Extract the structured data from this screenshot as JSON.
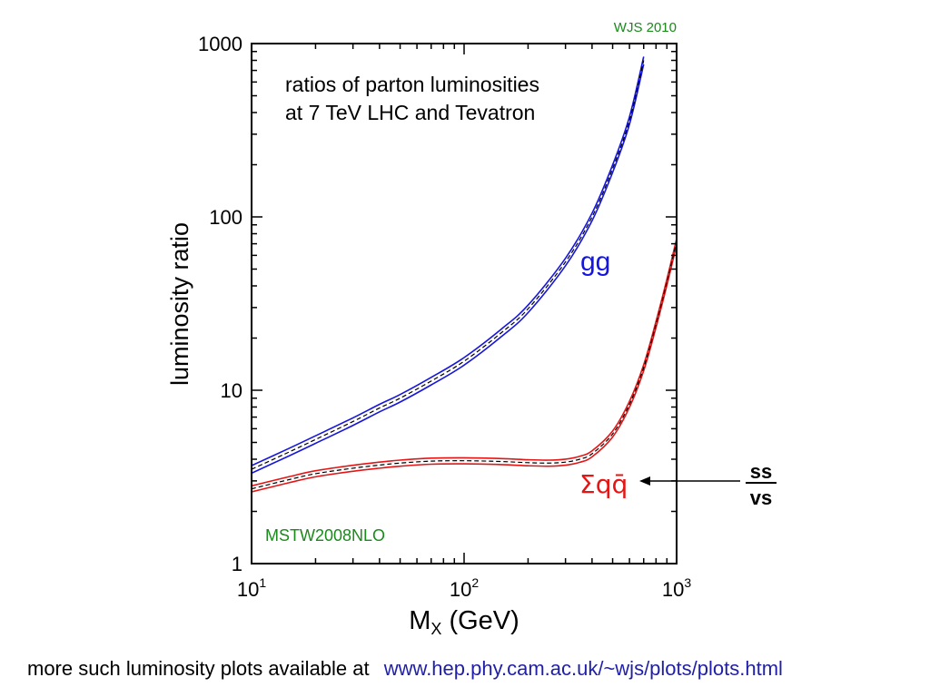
{
  "chart_data": {
    "type": "line",
    "title_lines": [
      "ratios of parton luminosities",
      "at 7 TeV LHC and Tevatron"
    ],
    "credit": "WJS 2010",
    "pdf_set": "MSTW2008NLO",
    "ylabel": "luminosity ratio",
    "xlabel_main": "M",
    "xlabel_sub": "X",
    "xlabel_unit": " (GeV)",
    "xscale": "log",
    "yscale": "log",
    "xlim": [
      10,
      1000
    ],
    "ylim": [
      1,
      1000
    ],
    "x_ticks": [
      {
        "value": 10,
        "base": "10",
        "exp": "1"
      },
      {
        "value": 100,
        "base": "10",
        "exp": "2"
      },
      {
        "value": 1000,
        "base": "10",
        "exp": "3"
      }
    ],
    "y_ticks": [
      {
        "value": 1,
        "label": "1"
      },
      {
        "value": 10,
        "label": "10"
      },
      {
        "value": 100,
        "label": "100"
      },
      {
        "value": 1000,
        "label": "1000"
      }
    ],
    "series": [
      {
        "name": "gg",
        "color": "#1515e0",
        "x": [
          10,
          15,
          20,
          30,
          40,
          50,
          70,
          100,
          150,
          200,
          300,
          400,
          500,
          600,
          700
        ],
        "y": [
          3.5,
          4.4,
          5.2,
          6.6,
          7.9,
          9.0,
          11.3,
          14.7,
          21.5,
          29.5,
          55,
          100,
          190,
          360,
          800
        ],
        "band": 0.05
      },
      {
        "name": "Σqq̄",
        "color": "#e51515",
        "x": [
          10,
          15,
          20,
          30,
          40,
          50,
          70,
          100,
          150,
          200,
          250,
          300,
          350,
          400,
          500,
          600,
          700,
          800,
          900,
          1000
        ],
        "y": [
          2.7,
          3.05,
          3.3,
          3.55,
          3.7,
          3.8,
          3.9,
          3.92,
          3.88,
          3.82,
          3.8,
          3.85,
          4.0,
          4.3,
          5.6,
          8.3,
          13.5,
          24,
          42,
          72
        ],
        "band": 0.04
      }
    ],
    "annotation": {
      "arrow_target": "Σqq̄",
      "top": "ss",
      "bottom": "vs"
    }
  },
  "footer": {
    "text": "more such luminosity plots available at",
    "link": "www.hep.phy.cam.ac.uk/~wjs/plots/plots.html"
  }
}
